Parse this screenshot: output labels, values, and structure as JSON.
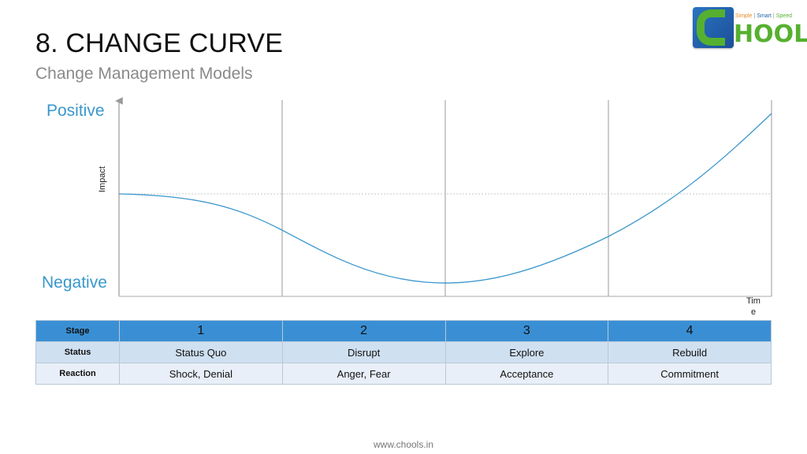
{
  "header": {
    "title": "8. CHANGE CURVE",
    "subtitle": "Change Management Models"
  },
  "logo": {
    "word": "HOOLS",
    "tagline": [
      "Simple",
      "Smart",
      "Speed"
    ],
    "colors": {
      "brand_blue": "#1e5fa8",
      "brand_green": "#56b030",
      "brand_orange": "#e58a1f"
    }
  },
  "diagram": {
    "y_top_label": "Positive",
    "y_bottom_label": "Negative",
    "y_axis_label": "Impact",
    "x_axis_label": "Time",
    "curve_color": "#3a97cc",
    "shape": "dip-then-rise",
    "sections": 4,
    "baseline": "dotted"
  },
  "table": {
    "rows": [
      {
        "header": "Stage",
        "cells": [
          "1",
          "2",
          "3",
          "4"
        ]
      },
      {
        "header": "Status",
        "cells": [
          "Status Quo",
          "Disrupt",
          "Explore",
          "Rebuild"
        ]
      },
      {
        "header": "Reaction",
        "cells": [
          "Shock, Denial",
          "Anger, Fear",
          "Acceptance",
          "Commitment"
        ]
      }
    ]
  },
  "footer": {
    "url": "www.chools.in"
  }
}
